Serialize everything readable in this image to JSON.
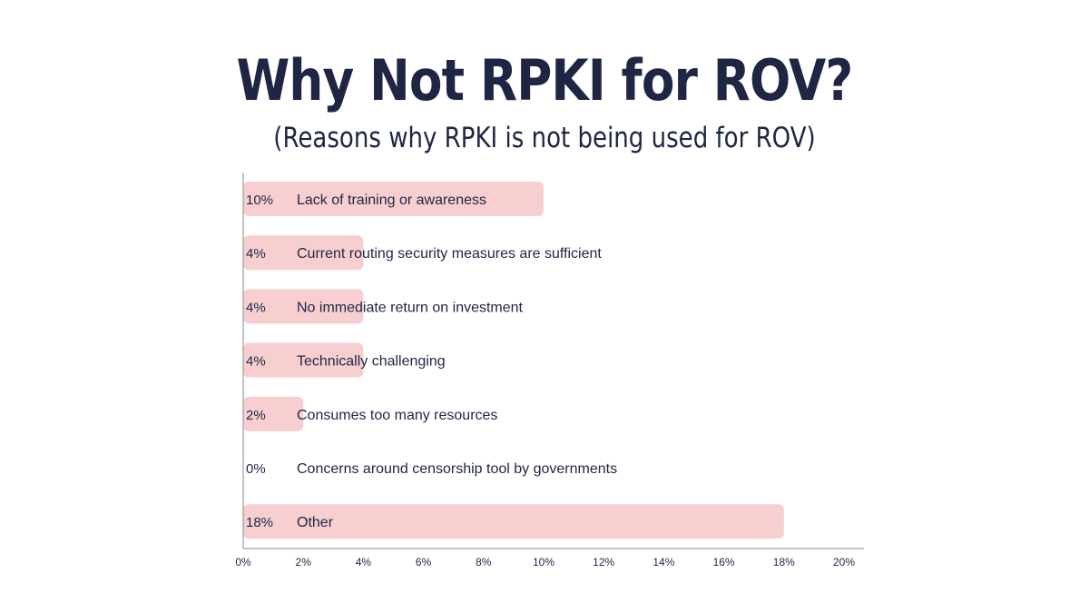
{
  "header": {
    "title": "Why Not RPKI for ROV?",
    "subtitle": "(Reasons why RPKI is not being used for ROV)"
  },
  "colors": {
    "bar": "#f7cfd0",
    "text": "#1f2644",
    "axis": "#888888"
  },
  "chart_data": {
    "type": "bar",
    "orientation": "horizontal",
    "categories": [
      "Lack of training or awareness",
      "Current routing security measures are sufficient",
      "No immediate return on investment",
      "Technically challenging",
      "Consumes too many resources",
      "Concerns around censorship tool by governments",
      "Other"
    ],
    "values": [
      10,
      4,
      4,
      4,
      2,
      0,
      18
    ],
    "value_labels": [
      "10%",
      "4%",
      "4%",
      "4%",
      "2%",
      "0%",
      "18%"
    ],
    "xlim": [
      0,
      20
    ],
    "xticks": [
      0,
      2,
      4,
      6,
      8,
      10,
      12,
      14,
      16,
      18,
      20
    ],
    "xtick_labels": [
      "0%",
      "2%",
      "4%",
      "6%",
      "8%",
      "10%",
      "12%",
      "14%",
      "16%",
      "18%",
      "20%"
    ],
    "grid": false
  }
}
